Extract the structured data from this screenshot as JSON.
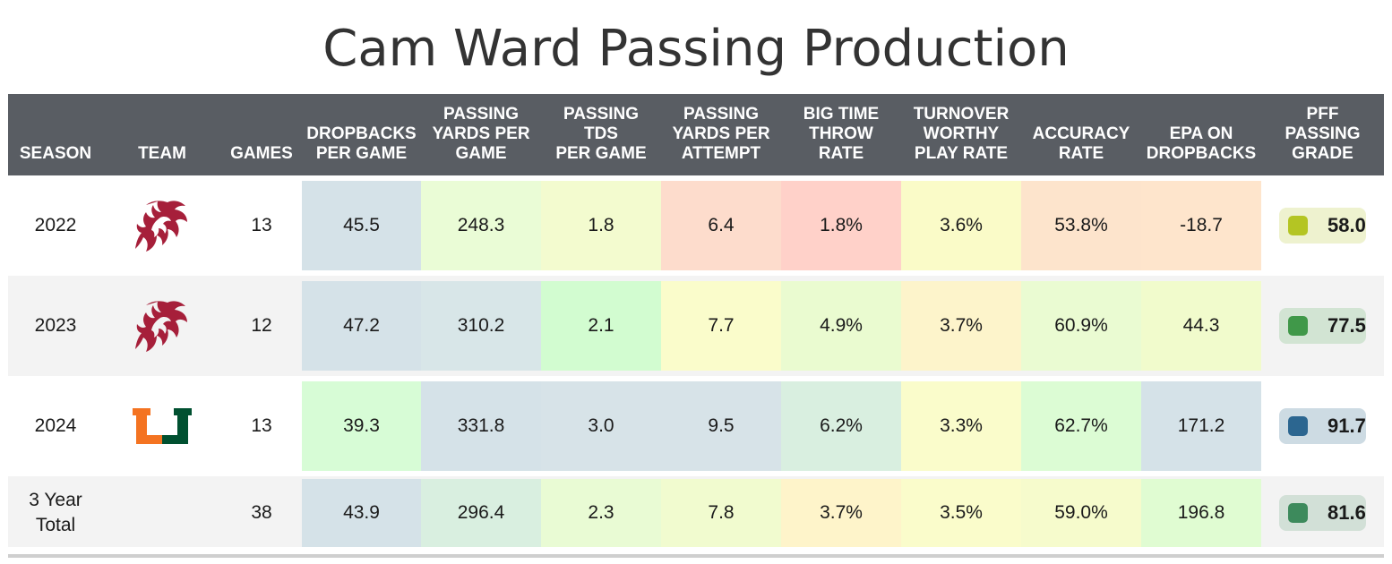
{
  "title": "Cam Ward Passing Production",
  "columns": [
    "SEASON",
    "TEAM",
    "GAMES",
    "DROPBACKS\nPER GAME",
    "PASSING\nYARDS PER\nGAME",
    "PASSING\nTDS\nPER GAME",
    "PASSING\nYARDS PER\nATTEMPT",
    "BIG TIME\nTHROW\nRATE",
    "TURNOVER\nWORTHY\nPLAY RATE",
    "ACCURACY\nRATE",
    "EPA ON\nDROPBACKS",
    "PFF\nPASSING\nGRADE"
  ],
  "rows": [
    {
      "season": "2022",
      "team_logo": "washington-state-cougars-logo",
      "games": "13",
      "stats": [
        "45.5",
        "248.3",
        "1.8",
        "6.4",
        "1.8%",
        "3.6%",
        "53.8%",
        "-18.7"
      ],
      "colors": [
        "#d5e2e8",
        "#eafcd6",
        "#f3fbcf",
        "#fddccc",
        "#ffd1c9",
        "#fafbc8",
        "#fde4cc",
        "#fee5cc"
      ],
      "grade": "58.0",
      "grade_color": "#b4c523",
      "grade_bg": "#eef2cf"
    },
    {
      "season": "2023",
      "team_logo": "washington-state-cougars-logo",
      "games": "12",
      "stats": [
        "47.2",
        "310.2",
        "2.1",
        "7.7",
        "4.9%",
        "3.7%",
        "60.9%",
        "44.3"
      ],
      "colors": [
        "#d5e2e8",
        "#d8e6e8",
        "#d2fcd0",
        "#fafccb",
        "#eafbd0",
        "#fdf4cb",
        "#eafbd2",
        "#f1fbcc"
      ],
      "grade": "77.5",
      "grade_color": "#409849",
      "grade_bg": "#d2e4d3"
    },
    {
      "season": "2024",
      "team_logo": "miami-hurricanes-logo",
      "games": "13",
      "stats": [
        "39.3",
        "331.8",
        "3.0",
        "9.5",
        "6.2%",
        "3.3%",
        "62.7%",
        "171.2"
      ],
      "colors": [
        "#d7fcd6",
        "#d5e2e8",
        "#d7e3e8",
        "#d7e3e8",
        "#d9efe0",
        "#fafccb",
        "#dcfcd4",
        "#d5e2e8"
      ],
      "grade": "91.7",
      "grade_color": "#2c6690",
      "grade_bg": "#cddbe3"
    },
    {
      "season": "3 Year\nTotal",
      "team_logo": "",
      "games": "38",
      "stats": [
        "43.9",
        "296.4",
        "2.3",
        "7.8",
        "3.7%",
        "3.5%",
        "59.0%",
        "196.8"
      ],
      "colors": [
        "#d5e2e8",
        "#d9efe0",
        "#e9fbd4",
        "#f1fbcf",
        "#fef4ca",
        "#fafccb",
        "#f6fbcc",
        "#e0fcd2"
      ],
      "grade": "81.6",
      "grade_color": "#3d8a5c",
      "grade_bg": "#d2e0d7"
    }
  ]
}
